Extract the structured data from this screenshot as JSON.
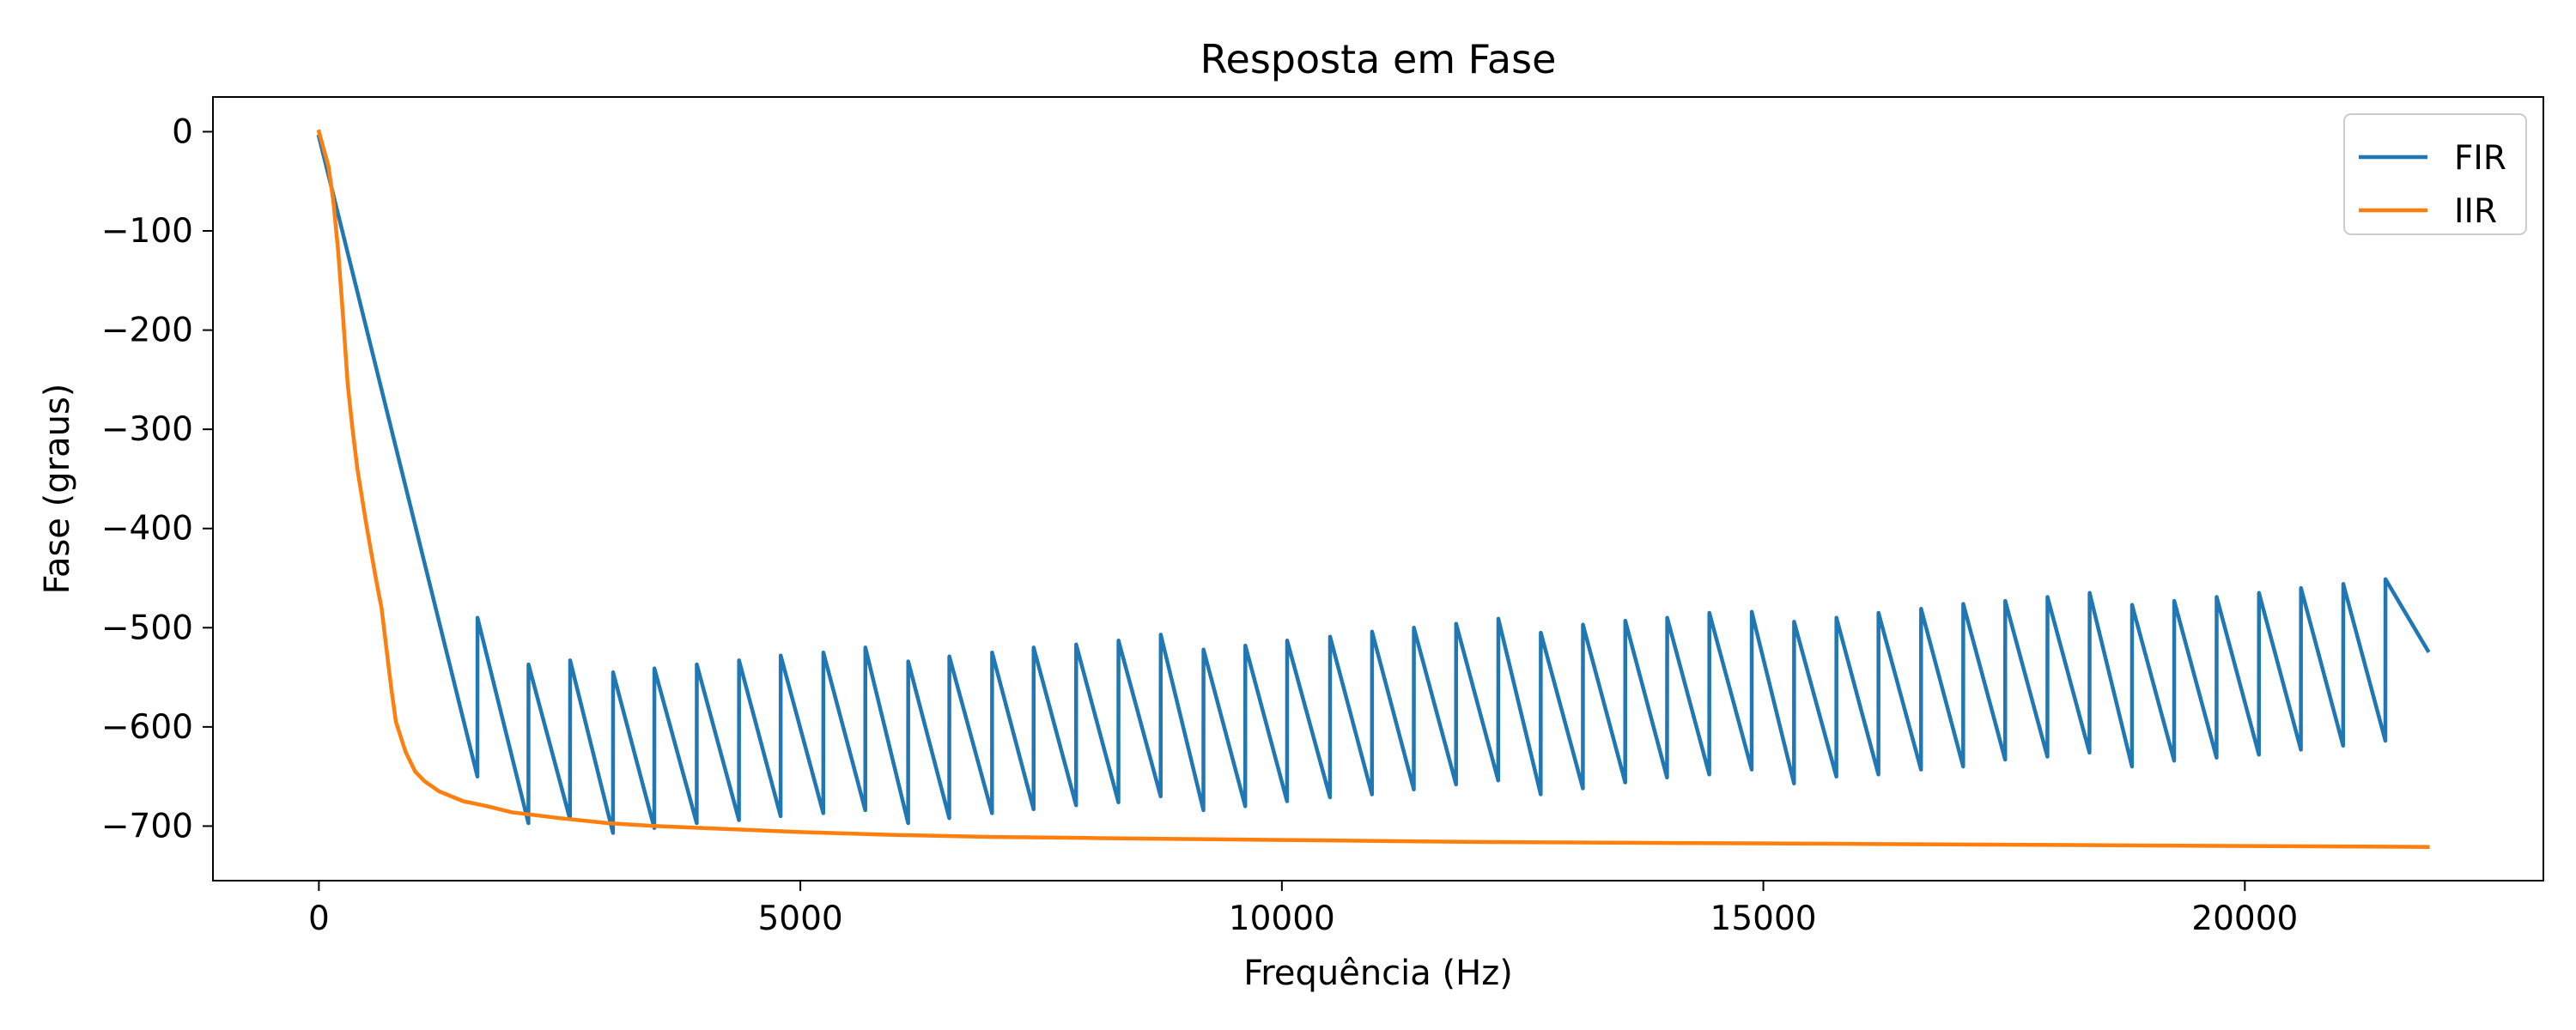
{
  "chart_data": {
    "type": "line",
    "title": "Resposta em Fase",
    "xlabel": "Frequência (Hz)",
    "ylabel": "Fase (graus)",
    "xlim": [
      -1100,
      23100
    ],
    "ylim": [
      -755,
      35
    ],
    "x_ticks": [
      0,
      5000,
      10000,
      15000,
      20000
    ],
    "y_ticks": [
      0,
      -100,
      -200,
      -300,
      -400,
      -500,
      -600,
      -700
    ],
    "grid": false,
    "legend_position": "top-right",
    "series": [
      {
        "name": "FIR",
        "color": "#1f77b4",
        "points": [
          [
            0,
            -5
          ],
          [
            1646,
            -650
          ],
          [
            1647,
            -490
          ],
          [
            2176,
            -697
          ],
          [
            2177,
            -537
          ],
          [
            2608,
            -693
          ],
          [
            2609,
            -533
          ],
          [
            3054,
            -707
          ],
          [
            3055,
            -545
          ],
          [
            3483,
            -702
          ],
          [
            3484,
            -541
          ],
          [
            3924,
            -697
          ],
          [
            3925,
            -537
          ],
          [
            4362,
            -694
          ],
          [
            4363,
            -533
          ],
          [
            4795,
            -690
          ],
          [
            4796,
            -528
          ],
          [
            5238,
            -687
          ],
          [
            5239,
            -525
          ],
          [
            5674,
            -684
          ],
          [
            5675,
            -520
          ],
          [
            6119,
            -697
          ],
          [
            6120,
            -534
          ],
          [
            6546,
            -692
          ],
          [
            6547,
            -529
          ],
          [
            6990,
            -687
          ],
          [
            6991,
            -525
          ],
          [
            7422,
            -683
          ],
          [
            7423,
            -520
          ],
          [
            7863,
            -679
          ],
          [
            7864,
            -517
          ],
          [
            8303,
            -676
          ],
          [
            8304,
            -513
          ],
          [
            8741,
            -670
          ],
          [
            8742,
            -507
          ],
          [
            9185,
            -684
          ],
          [
            9186,
            -522
          ],
          [
            9620,
            -680
          ],
          [
            9621,
            -518
          ],
          [
            10054,
            -675
          ],
          [
            10055,
            -513
          ],
          [
            10500,
            -671
          ],
          [
            10501,
            -509
          ],
          [
            10936,
            -668
          ],
          [
            10937,
            -504
          ],
          [
            11370,
            -663
          ],
          [
            11371,
            -500
          ],
          [
            11809,
            -658
          ],
          [
            11810,
            -496
          ],
          [
            12247,
            -654
          ],
          [
            12248,
            -491
          ],
          [
            12688,
            -668
          ],
          [
            12689,
            -505
          ],
          [
            13126,
            -662
          ],
          [
            13127,
            -497
          ],
          [
            13565,
            -656
          ],
          [
            13566,
            -493
          ],
          [
            14000,
            -651
          ],
          [
            14001,
            -490
          ],
          [
            14438,
            -648
          ],
          [
            14439,
            -485
          ],
          [
            14879,
            -643
          ],
          [
            14880,
            -484
          ],
          [
            15318,
            -657
          ],
          [
            15319,
            -494
          ],
          [
            15758,
            -650
          ],
          [
            15759,
            -490
          ],
          [
            16195,
            -648
          ],
          [
            16196,
            -485
          ],
          [
            16637,
            -643
          ],
          [
            16638,
            -481
          ],
          [
            17075,
            -640
          ],
          [
            17076,
            -476
          ],
          [
            17511,
            -633
          ],
          [
            17512,
            -473
          ],
          [
            17950,
            -630
          ],
          [
            17951,
            -469
          ],
          [
            18387,
            -626
          ],
          [
            18388,
            -465
          ],
          [
            18828,
            -640
          ],
          [
            18829,
            -477
          ],
          [
            19266,
            -634
          ],
          [
            19267,
            -473
          ],
          [
            19706,
            -631
          ],
          [
            19707,
            -469
          ],
          [
            20146,
            -628
          ],
          [
            20147,
            -465
          ],
          [
            20582,
            -623
          ],
          [
            20583,
            -460
          ],
          [
            21021,
            -619
          ],
          [
            21022,
            -456
          ],
          [
            21459,
            -614
          ],
          [
            21460,
            -451
          ],
          [
            21900,
            -523
          ]
        ]
      },
      {
        "name": "IIR",
        "color": "#ff7f0e",
        "points": [
          [
            0,
            0
          ],
          [
            100,
            -35
          ],
          [
            150,
            -70
          ],
          [
            200,
            -120
          ],
          [
            250,
            -185
          ],
          [
            300,
            -255
          ],
          [
            350,
            -300
          ],
          [
            400,
            -340
          ],
          [
            450,
            -370
          ],
          [
            500,
            -400
          ],
          [
            600,
            -455
          ],
          [
            650,
            -480
          ],
          [
            700,
            -520
          ],
          [
            750,
            -560
          ],
          [
            800,
            -595
          ],
          [
            900,
            -625
          ],
          [
            1000,
            -645
          ],
          [
            1100,
            -655
          ],
          [
            1250,
            -665
          ],
          [
            1500,
            -675
          ],
          [
            1750,
            -680
          ],
          [
            2000,
            -686
          ],
          [
            2500,
            -692
          ],
          [
            3000,
            -697
          ],
          [
            3500,
            -700
          ],
          [
            4000,
            -702
          ],
          [
            5000,
            -706
          ],
          [
            6000,
            -709
          ],
          [
            7000,
            -711
          ],
          [
            8000,
            -712
          ],
          [
            9000,
            -713
          ],
          [
            10000,
            -714
          ],
          [
            12000,
            -716
          ],
          [
            14000,
            -717
          ],
          [
            16000,
            -718
          ],
          [
            18000,
            -719
          ],
          [
            20000,
            -720
          ],
          [
            21900,
            -721
          ]
        ]
      }
    ]
  }
}
